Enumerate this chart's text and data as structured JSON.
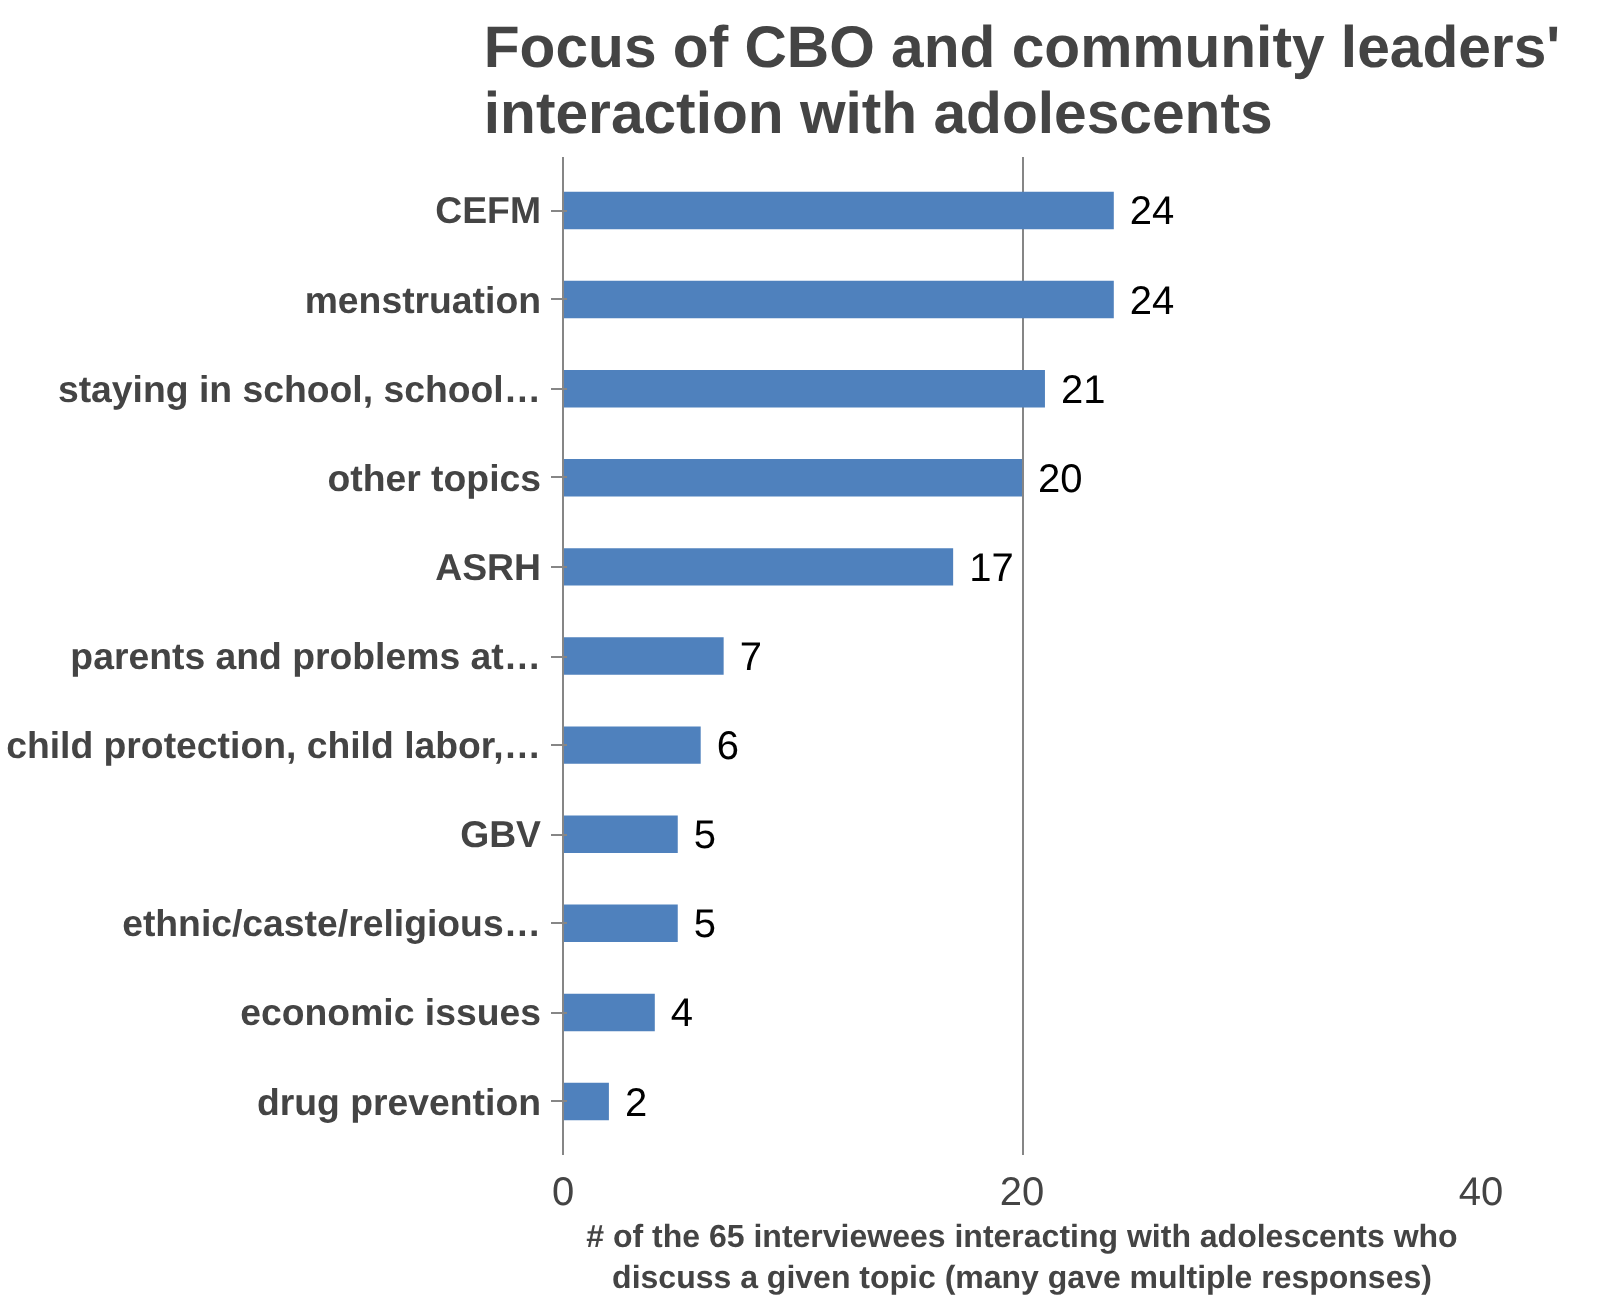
{
  "chart_data": {
    "type": "bar",
    "orientation": "horizontal",
    "title": "Focus of CBO and community leaders' interaction with adolescents",
    "xlabel": "# of the 65 interviewees interacting with adolescents who discuss a given topic (many gave multiple responses)",
    "categories": [
      "CEFM",
      "menstruation",
      "staying in school, school…",
      "other topics",
      "ASRH",
      "parents and problems at…",
      "child protection, child labor,…",
      "GBV",
      "ethnic/caste/religious…",
      "economic issues",
      "drug prevention"
    ],
    "values": [
      24,
      24,
      21,
      20,
      17,
      7,
      6,
      5,
      5,
      4,
      2
    ],
    "color": "#4f81bd",
    "xlim": [
      0,
      40
    ],
    "xticks": [
      0,
      20,
      40
    ],
    "grid": "x",
    "data_labels": true
  }
}
